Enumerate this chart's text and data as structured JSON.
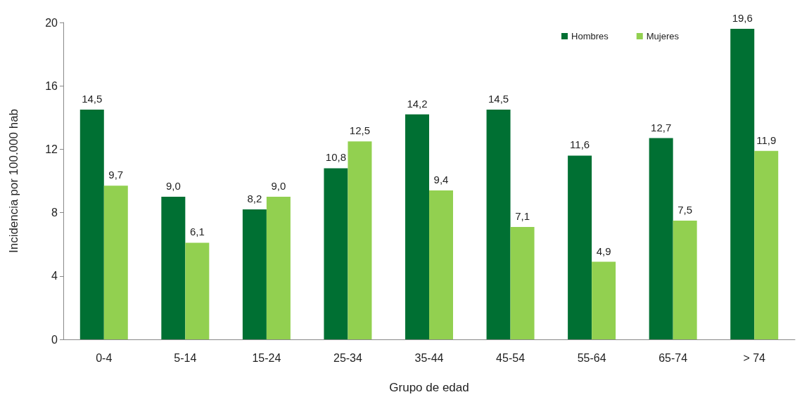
{
  "chart_data": {
    "type": "bar",
    "xlabel": "Grupo de edad",
    "ylabel": "Incidencia por 100.000 hab",
    "categories": [
      "0-4",
      "5-14",
      "15-24",
      "25-34",
      "35-44",
      "45-54",
      "55-64",
      "65-74",
      "> 74"
    ],
    "series": [
      {
        "name": "Hombres",
        "color": "#007033",
        "values": [
          14.5,
          9.0,
          8.2,
          10.8,
          14.2,
          14.5,
          11.6,
          12.7,
          19.6
        ],
        "value_labels": [
          "14,5",
          "9,0",
          "8,2",
          "10,8",
          "14,2",
          "14,5",
          "11,6",
          "12,7",
          "19,6"
        ]
      },
      {
        "name": "Mujeres",
        "color": "#92d050",
        "values": [
          9.7,
          6.1,
          9.0,
          12.5,
          9.4,
          7.1,
          4.9,
          7.5,
          11.9
        ],
        "value_labels": [
          "9,7",
          "6,1",
          "9,0",
          "12,5",
          "9,4",
          "7,1",
          "4,9",
          "7,5",
          "11,9"
        ]
      }
    ],
    "ylim": [
      0,
      20
    ],
    "yticks": [
      0,
      4,
      8,
      12,
      16,
      20
    ],
    "grid": false,
    "legend": "top right"
  }
}
